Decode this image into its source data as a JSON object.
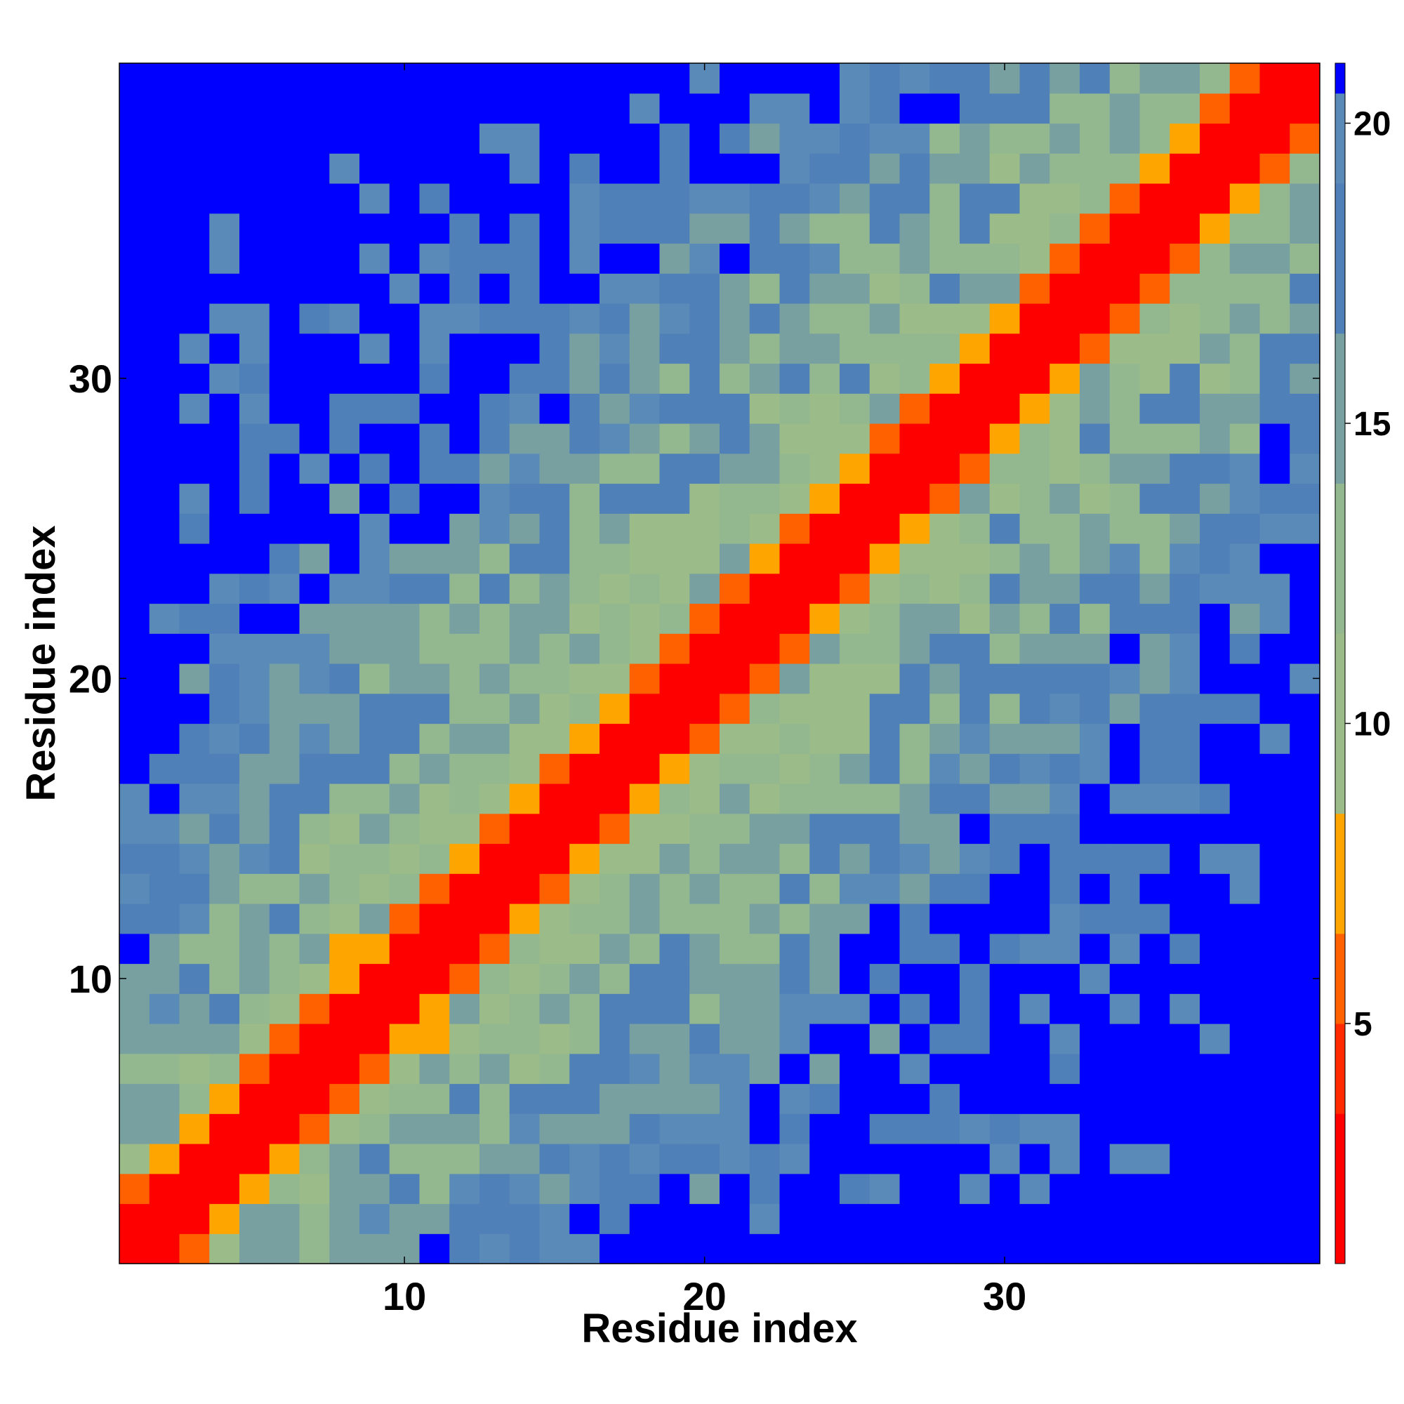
{
  "chart_data": {
    "type": "heatmap",
    "title": "",
    "xlabel": "Residue index",
    "ylabel": "Residue index",
    "n_residues": 40,
    "x_ticks": [
      10,
      20,
      30
    ],
    "y_ticks": [
      10,
      20,
      30
    ],
    "colorbar": {
      "ticks": [
        5,
        10,
        15,
        20
      ],
      "range": [
        1,
        21
      ],
      "bands": [
        {
          "from": 1,
          "to": 3.5,
          "color": "#ff0000"
        },
        {
          "from": 3.5,
          "to": 5,
          "color": "#ff2a00"
        },
        {
          "from": 5,
          "to": 6.5,
          "color": "#ff6000"
        },
        {
          "from": 6.5,
          "to": 8.5,
          "color": "#ffa500"
        },
        {
          "from": 8.5,
          "to": 11.5,
          "color": "#9bbb88"
        },
        {
          "from": 11.5,
          "to": 14,
          "color": "#93b890"
        },
        {
          "from": 14,
          "to": 16.5,
          "color": "#78a0a0"
        },
        {
          "from": 16.5,
          "to": 19,
          "color": "#5080b8"
        },
        {
          "from": 19,
          "to": 20.5,
          "color": "#5a8ab8"
        },
        {
          "from": 20.5,
          "to": 21,
          "color": "#0000ff"
        }
      ]
    },
    "colormap_note_values": {
      "red": 2,
      "orange_red": 5.5,
      "orange": 7.5,
      "sage": 10,
      "gray_green": 13,
      "steel": 15.5,
      "blue_gray": 18,
      "blue": 21
    }
  }
}
